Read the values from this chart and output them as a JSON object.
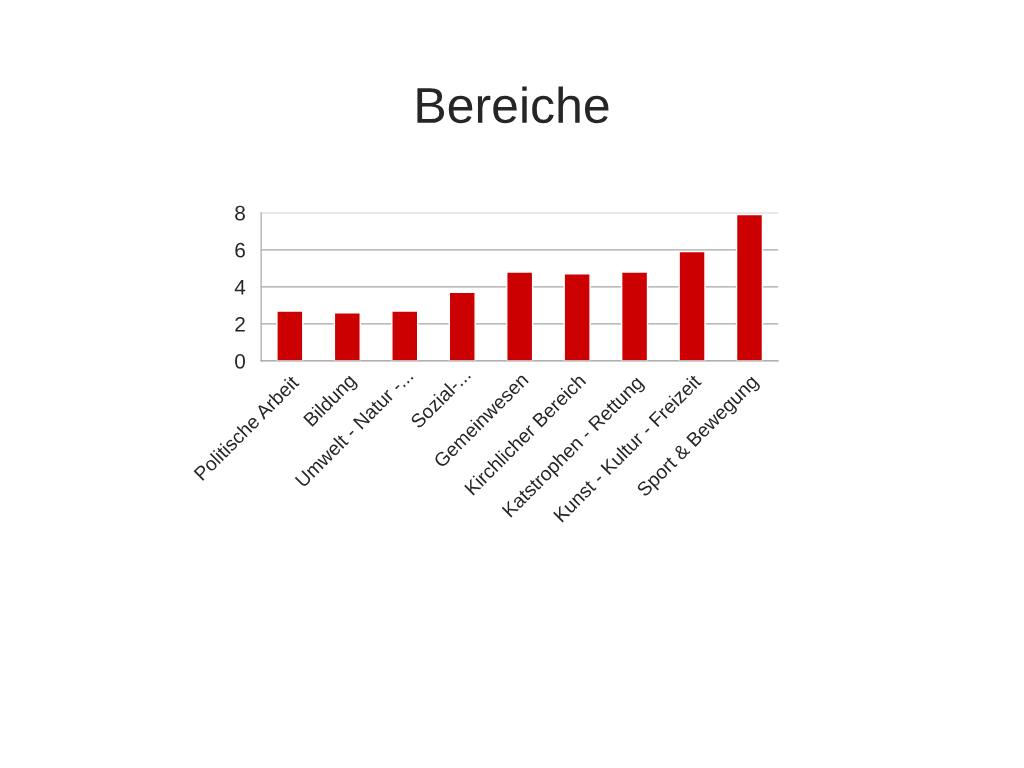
{
  "chart_data": {
    "type": "bar",
    "title": "Bereiche",
    "categories": [
      "Politische Arbeit",
      "Bildung",
      "Umwelt - Natur -...",
      "Sozial-...",
      "Gemeinwesen",
      "Kirchlicher Bereich",
      "Katstrophen - Rettung",
      "Kunst - Kultur - Freizeit",
      "Sport & Bewegung"
    ],
    "values": [
      2.7,
      2.6,
      2.7,
      3.7,
      4.8,
      4.7,
      4.8,
      5.9,
      7.9
    ],
    "color": "#cc0000",
    "ylim": [
      0,
      8
    ],
    "yticks": [
      0,
      2,
      4,
      6,
      8
    ],
    "grid": "y"
  }
}
